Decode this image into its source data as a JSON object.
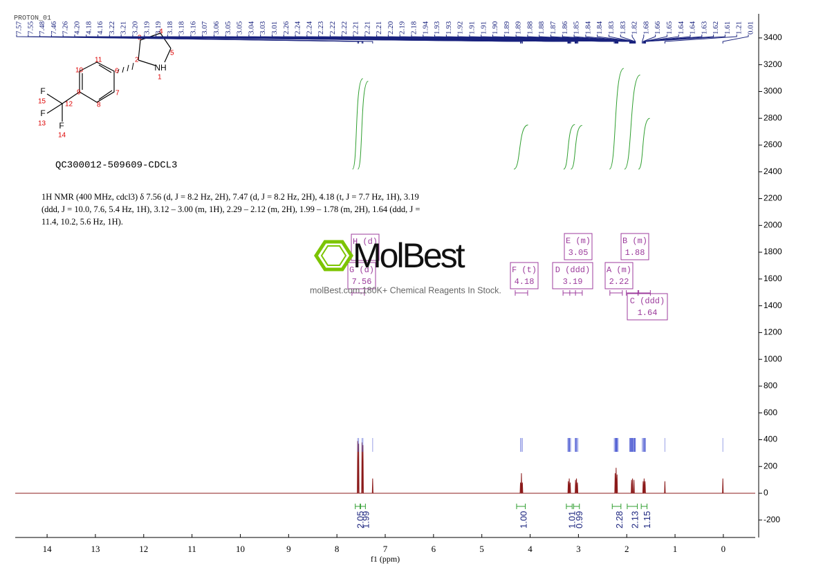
{
  "chart_data": {
    "type": "line",
    "title": "PROTON_01",
    "sample": "QC300012-509609-CDCL3",
    "x_label": "f1 (ppm)",
    "description": "1H NMR (400 MHz, cdcl3) δ 7.56 (d, J = 8.2 Hz, 2H), 7.47 (d, J = 8.2 Hz, 2H), 4.18 (t, J = 7.7 Hz, 1H), 3.19 (ddd, J = 10.0, 7.6, 5.4 Hz, 1H), 3.12 – 3.00 (m, 1H), 2.29 – 2.12 (m, 2H), 1.99 – 1.78 (m, 2H), 1.64 (ddd, J = 11.4, 10.2, 5.6 Hz, 1H).",
    "watermark": "MolBest",
    "watermark_sub": "molBest.com,180K+ Chemical Reagents In Stock.",
    "color": "#8b1a1a",
    "xlim": [
      14.66,
      -0.66
    ],
    "xticks": [
      14,
      13,
      12,
      11,
      10,
      9,
      8,
      7,
      6,
      5,
      4,
      3,
      2,
      1,
      0
    ],
    "ylim": [
      -330,
      3580
    ],
    "yticks": [
      -200,
      0,
      200,
      400,
      600,
      800,
      1000,
      1200,
      1400,
      1600,
      1800,
      2000,
      2200,
      2400,
      2600,
      2800,
      3000,
      3200,
      3400
    ],
    "x": [
      14.66,
      7.578,
      7.57,
      7.562,
      7.558,
      7.55,
      7.542,
      7.488,
      7.48,
      7.472,
      7.468,
      7.46,
      7.452,
      7.268,
      7.26,
      7.252,
      4.208,
      4.2,
      4.192,
      4.188,
      4.18,
      4.172,
      4.168,
      4.16,
      4.152,
      3.218,
      3.21,
      3.202,
      3.198,
      3.19,
      3.182,
      3.178,
      3.17,
      3.162,
      3.068,
      3.06,
      3.052,
      3.048,
      3.04,
      3.032,
      3.028,
      3.02,
      3.012,
      2.248,
      2.24,
      2.232,
      2.228,
      2.22,
      2.212,
      2.208,
      2.2,
      2.192,
      1.908,
      1.9,
      1.892,
      1.888,
      1.88,
      1.872,
      1.858,
      1.85,
      1.842,
      1.668,
      1.66,
      1.652,
      1.648,
      1.64,
      1.632,
      1.628,
      1.62,
      1.612,
      1.218,
      1.21,
      1.202,
      0.018,
      0.01,
      0.002,
      -0.66
    ],
    "values": [
      0,
      0,
      390,
      0,
      0,
      370,
      0,
      0,
      380,
      0,
      0,
      360,
      0,
      0,
      110,
      0,
      0,
      80,
      0,
      0,
      150,
      0,
      0,
      80,
      0,
      0,
      90,
      0,
      0,
      110,
      0,
      0,
      80,
      0,
      0,
      100,
      0,
      0,
      110,
      0,
      0,
      80,
      0,
      0,
      150,
      0,
      0,
      190,
      0,
      0,
      140,
      0,
      0,
      100,
      0,
      0,
      110,
      0,
      0,
      100,
      0,
      0,
      90,
      0,
      0,
      110,
      0,
      0,
      90,
      0,
      0,
      90,
      0,
      0,
      110,
      0,
      0
    ],
    "peak_labels": [
      7.57,
      7.55,
      7.48,
      7.46,
      7.26,
      {
        "value": 4.2,
        "label": "4.20"
      },
      4.18,
      4.16,
      3.22,
      3.21,
      {
        "value": 3.2,
        "label": "3.20"
      },
      3.19,
      3.19,
      3.18,
      3.18,
      3.16,
      3.07,
      3.06,
      3.05,
      3.05,
      3.04,
      3.03,
      3.01,
      2.26,
      2.24,
      2.24,
      2.23,
      2.22,
      2.22,
      2.21,
      2.21,
      2.21,
      {
        "value": 2.2,
        "label": "2.20"
      },
      2.19,
      2.18,
      1.94,
      1.93,
      1.93,
      1.92,
      1.91,
      1.91,
      {
        "value": 1.9,
        "label": "1.90"
      },
      1.89,
      1.89,
      1.88,
      1.88,
      1.87,
      1.86,
      1.85,
      1.84,
      1.84,
      1.83,
      1.83,
      1.82,
      1.68,
      1.66,
      1.65,
      1.64,
      1.64,
      1.63,
      1.62,
      1.61,
      1.21,
      0.01
    ],
    "integrals": [
      {
        "range": [
          7.62,
          7.52
        ],
        "value": 2.05
      },
      {
        "range": [
          7.51,
          7.41
        ],
        "value": 1.99
      },
      {
        "range": [
          4.28,
          4.1
        ],
        "value": 1,
        "label": "1.00"
      },
      {
        "range": [
          3.25,
          3.13
        ],
        "value": 1.01
      },
      {
        "range": [
          3.1,
          2.98
        ],
        "value": 0.99
      },
      {
        "range": [
          2.3,
          2.12
        ],
        "value": 2.28
      },
      {
        "range": [
          1.99,
          1.78
        ],
        "value": 2.13
      },
      {
        "range": [
          1.7,
          1.58
        ],
        "value": 1.15
      }
    ],
    "multiplets": [
      {
        "label": "H (d)"
      },
      {
        "label": "G (d)",
        "shift": 7.56
      },
      {
        "label": "F (t)",
        "shift": 4.18
      },
      {
        "label": "D (ddd)",
        "shift": 3.19
      },
      {
        "label": "E (m)",
        "shift": 3.05
      },
      {
        "label": "A (m)",
        "shift": 2.22
      },
      {
        "label": "B (m)",
        "shift": 1.88
      },
      {
        "label": "C (ddd)",
        "shift": 1.64
      }
    ],
    "structure": {
      "atoms": [
        "NH",
        "F",
        "F",
        "F"
      ],
      "locants": [
        "1",
        "2",
        "3",
        "4",
        "5",
        "6",
        "7",
        "8",
        "9",
        "10",
        "11",
        "12",
        "13",
        "14",
        "15"
      ]
    }
  }
}
